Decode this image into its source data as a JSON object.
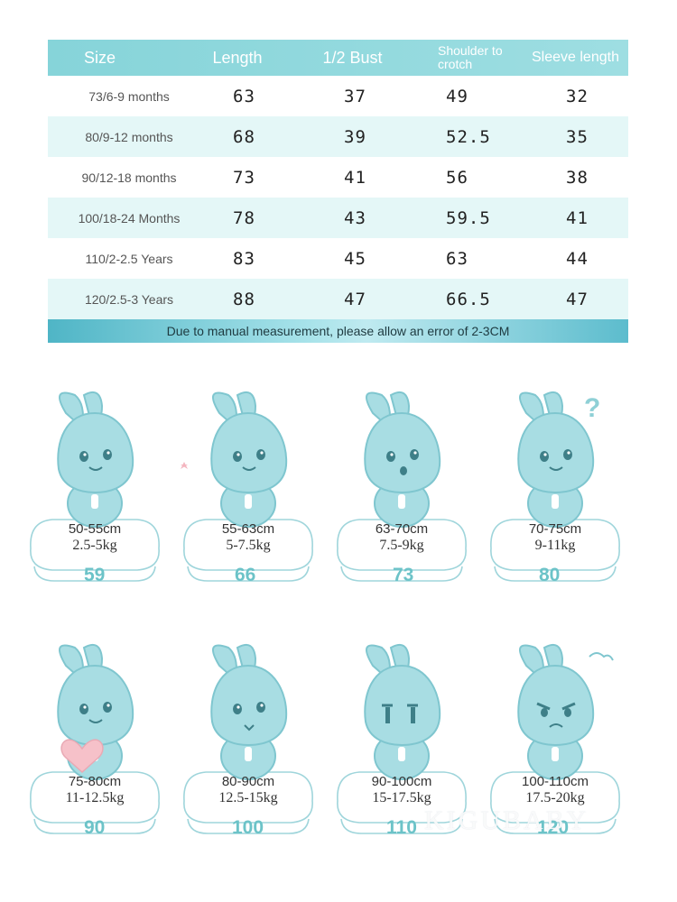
{
  "table": {
    "headers": [
      "Size",
      "Length",
      "1/2 Bust",
      "Shoulder to crotch",
      "Sleeve length"
    ],
    "header_shoulder_line1": "Shoulder to",
    "header_shoulder_line2": "crotch",
    "rows": [
      {
        "size": "73/6-9 months",
        "length": "63",
        "bust": "37",
        "shoulder": "49",
        "sleeve": "32"
      },
      {
        "size": "80/9-12 months",
        "length": "68",
        "bust": "39",
        "shoulder": "52.5",
        "sleeve": "35"
      },
      {
        "size": "90/12-18 months",
        "length": "73",
        "bust": "41",
        "shoulder": "56",
        "sleeve": "38"
      },
      {
        "size": "100/18-24 Months",
        "length": "78",
        "bust": "43",
        "shoulder": "59.5",
        "sleeve": "41"
      },
      {
        "size": "110/2-2.5 Years",
        "length": "83",
        "bust": "45",
        "shoulder": "63",
        "sleeve": "44"
      },
      {
        "size": "120/2.5-3 Years",
        "length": "88",
        "bust": "47",
        "shoulder": "66.5",
        "sleeve": "47"
      }
    ],
    "note": "Due to manual measurement, please allow an error of 2-3CM"
  },
  "cards": [
    {
      "height": "50-55cm",
      "weight": "2.5-5kg",
      "size": "59",
      "pose": "smile"
    },
    {
      "height": "55-63cm",
      "weight": "5-7.5kg",
      "size": "66",
      "pose": "star"
    },
    {
      "height": "63-70cm",
      "weight": "7.5-9kg",
      "size": "73",
      "pose": "sit"
    },
    {
      "height": "70-75cm",
      "weight": "9-11kg",
      "size": "80",
      "pose": "question"
    },
    {
      "height": "75-80cm",
      "weight": "11-12.5kg",
      "size": "90",
      "pose": "heart"
    },
    {
      "height": "80-90cm",
      "weight": "12.5-15kg",
      "size": "100",
      "pose": "lying"
    },
    {
      "height": "90-100cm",
      "weight": "15-17.5kg",
      "size": "110",
      "pose": "crying"
    },
    {
      "height": "100-110cm",
      "weight": "17.5-20kg",
      "size": "120",
      "pose": "angry"
    }
  ],
  "colors": {
    "header": "#8fd7dc",
    "alt_row": "#e4f7f7",
    "bunny": "#a8dde3",
    "bunny_outline": "#7fc6cf",
    "size_label": "#6cc3c8",
    "heart": "#f6c1c9"
  },
  "watermark": "KIGUBABY"
}
